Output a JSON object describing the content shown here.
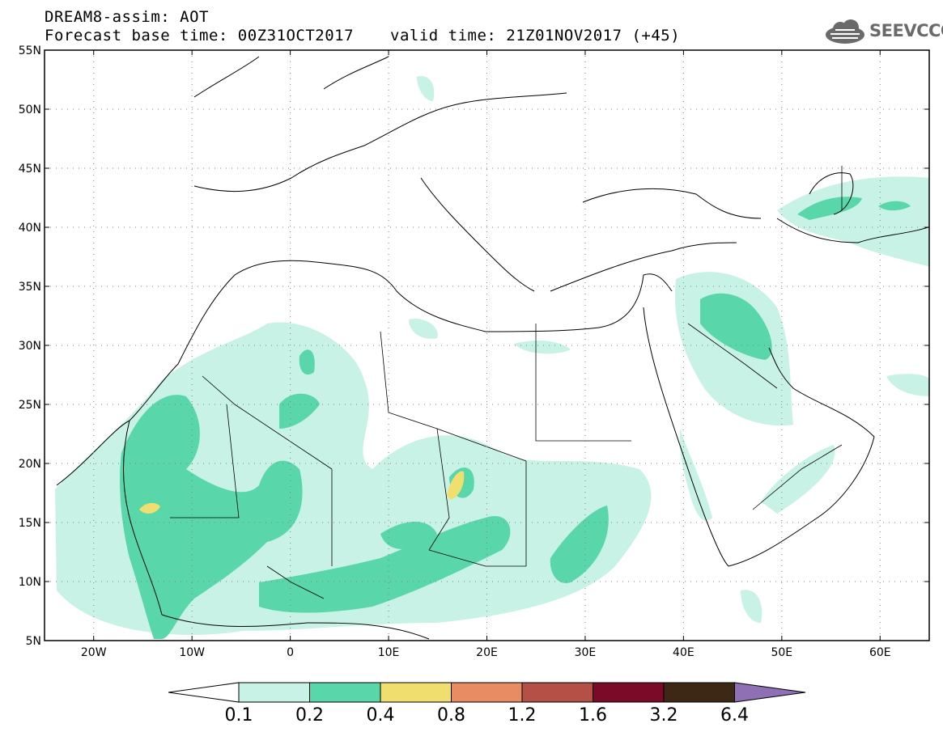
{
  "header": {
    "title": "DREAM8-assim: AOT",
    "base_time": "Forecast base time: 00Z31OCT2017",
    "valid_time": "valid time: 21Z01NOV2017 (+45)"
  },
  "logo": {
    "text": "SEEVCCC",
    "icon": "cloud-icon"
  },
  "map": {
    "lat_labels": [
      "55N",
      "50N",
      "45N",
      "40N",
      "35N",
      "30N",
      "25N",
      "20N",
      "15N",
      "10N",
      "5N"
    ],
    "lon_labels": [
      "20W",
      "10W",
      "0",
      "10E",
      "20E",
      "30E",
      "40E",
      "50E",
      "60E"
    ],
    "lat_range": [
      5,
      55
    ],
    "lon_range": [
      -25,
      65
    ],
    "grid": true
  },
  "colorbar": {
    "labels": [
      "0.1",
      "0.2",
      "0.4",
      "0.8",
      "1.2",
      "1.6",
      "3.2",
      "6.4"
    ],
    "colors": [
      "#ffffff",
      "#c8f2e6",
      "#5ad7aa",
      "#f0df6e",
      "#e88c64",
      "#b45046",
      "#7a0a28",
      "#3c2814",
      "#9070b4"
    ]
  }
}
